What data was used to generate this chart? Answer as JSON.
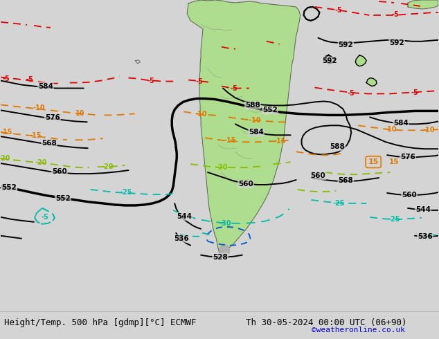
{
  "title": "Height/Temp. 500 hPa [gdmp][°C] ECMWF",
  "date_label": "Th 30-05-2024 00:00 UTC (06+90)",
  "copyright": "©weatheronline.co.uk",
  "bg_color": "#d4d4d4",
  "land_color": "#aedd8e",
  "ocean_color": "#d4d4d4",
  "coast_color": "#606060",
  "border_color": "#909090",
  "fig_width": 6.34,
  "fig_height": 4.9,
  "dpi": 100,
  "title_fontsize": 9.0,
  "date_fontsize": 9.0,
  "copyright_color": "#0000cc",
  "copyright_fontsize": 8.0,
  "black_lw": 1.4,
  "thick_lw": 2.5,
  "iso_lw": 1.3,
  "red_color": "#dd0000",
  "orange_color": "#e07800",
  "green_color": "#88bb00",
  "cyan_color": "#00bbaa",
  "blue_color": "#0055cc"
}
